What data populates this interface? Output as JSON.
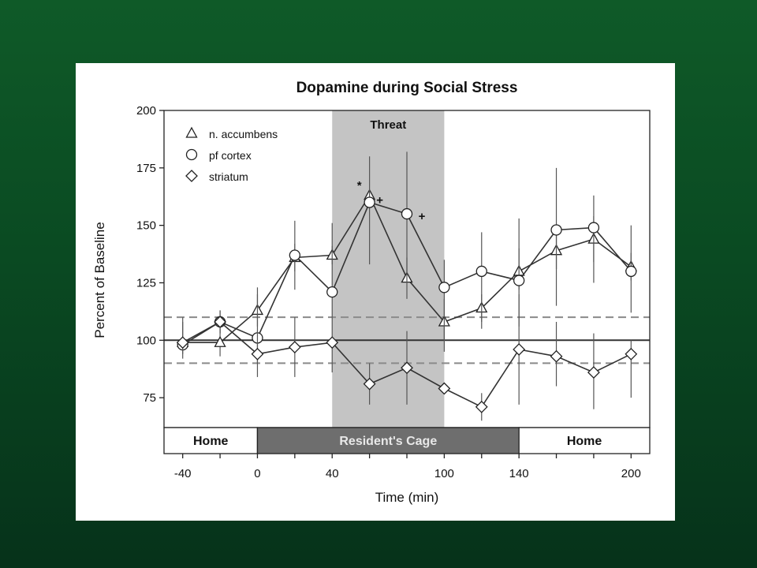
{
  "chart_data": {
    "type": "line",
    "title": "Dopamine during Social Stress",
    "xlabel": "Time (min)",
    "ylabel": "Percent of Baseline",
    "xlim": [
      -50,
      210
    ],
    "ylim": [
      62,
      200
    ],
    "x_ticks": [
      -40,
      -20,
      0,
      20,
      40,
      60,
      80,
      100,
      120,
      140,
      160,
      180,
      200
    ],
    "x_tick_labels": [
      {
        "x": -40,
        "label": "-40"
      },
      {
        "x": 0,
        "label": "0"
      },
      {
        "x": 40,
        "label": "40"
      },
      {
        "x": 100,
        "label": "100"
      },
      {
        "x": 140,
        "label": "140"
      },
      {
        "x": 200,
        "label": "200"
      }
    ],
    "y_ticks": [
      75,
      100,
      125,
      150,
      175,
      200
    ],
    "shaded_region": {
      "x": [
        40,
        100
      ],
      "label": "Threat",
      "color": "#c4c4c4"
    },
    "reference_lines": [
      {
        "y": 100,
        "style": "solid"
      },
      {
        "y": 110,
        "style": "dashed"
      },
      {
        "y": 90,
        "style": "dashed"
      }
    ],
    "series": [
      {
        "name": "n. accumbens",
        "marker": "triangle",
        "points": [
          {
            "x": -40,
            "y": 99,
            "lo": 99,
            "hi": 99
          },
          {
            "x": -20,
            "y": 99,
            "lo": 93,
            "hi": 105
          },
          {
            "x": 0,
            "y": 113,
            "lo": 106,
            "hi": 120
          },
          {
            "x": 20,
            "y": 136,
            "lo": 130,
            "hi": 142
          },
          {
            "x": 40,
            "y": 137,
            "lo": 133,
            "hi": 141
          },
          {
            "x": 60,
            "y": 163,
            "lo": 163,
            "hi": 163
          },
          {
            "x": 80,
            "y": 127,
            "lo": 118,
            "hi": 136
          },
          {
            "x": 100,
            "y": 108,
            "lo": 95,
            "hi": 118
          },
          {
            "x": 120,
            "y": 114,
            "lo": 108,
            "hi": 120
          },
          {
            "x": 140,
            "y": 130,
            "lo": 122,
            "hi": 153
          },
          {
            "x": 160,
            "y": 139,
            "lo": 131,
            "hi": 147
          },
          {
            "x": 180,
            "y": 144,
            "lo": 134,
            "hi": 154
          },
          {
            "x": 200,
            "y": 132,
            "lo": 126,
            "hi": 138
          }
        ]
      },
      {
        "name": "pf cortex",
        "marker": "circle",
        "points": [
          {
            "x": -40,
            "y": 98,
            "lo": 94,
            "hi": 108
          },
          {
            "x": -20,
            "y": 108,
            "lo": 103,
            "hi": 113
          },
          {
            "x": 0,
            "y": 101,
            "lo": 90,
            "hi": 123
          },
          {
            "x": 20,
            "y": 137,
            "lo": 122,
            "hi": 152
          },
          {
            "x": 40,
            "y": 121,
            "lo": 110,
            "hi": 151
          },
          {
            "x": 60,
            "y": 160,
            "lo": 133,
            "hi": 180
          },
          {
            "x": 80,
            "y": 155,
            "lo": 125,
            "hi": 182
          },
          {
            "x": 100,
            "y": 123,
            "lo": 100,
            "hi": 135
          },
          {
            "x": 120,
            "y": 130,
            "lo": 105,
            "hi": 147
          },
          {
            "x": 140,
            "y": 126,
            "lo": 106,
            "hi": 140
          },
          {
            "x": 160,
            "y": 148,
            "lo": 115,
            "hi": 175
          },
          {
            "x": 180,
            "y": 149,
            "lo": 125,
            "hi": 163
          },
          {
            "x": 200,
            "y": 130,
            "lo": 112,
            "hi": 150
          }
        ]
      },
      {
        "name": "striatum",
        "marker": "diamond",
        "points": [
          {
            "x": -40,
            "y": 99,
            "lo": 92,
            "hi": 110
          },
          {
            "x": -20,
            "y": 108,
            "lo": 103,
            "hi": 113
          },
          {
            "x": 0,
            "y": 94,
            "lo": 84,
            "hi": 104
          },
          {
            "x": 20,
            "y": 97,
            "lo": 84,
            "hi": 110
          },
          {
            "x": 40,
            "y": 99,
            "lo": 86,
            "hi": 110
          },
          {
            "x": 60,
            "y": 81,
            "lo": 72,
            "hi": 90
          },
          {
            "x": 80,
            "y": 88,
            "lo": 72,
            "hi": 104
          },
          {
            "x": 100,
            "y": 79,
            "lo": 79,
            "hi": 79
          },
          {
            "x": 120,
            "y": 71,
            "lo": 65,
            "hi": 77
          },
          {
            "x": 140,
            "y": 96,
            "lo": 72,
            "hi": 120
          },
          {
            "x": 160,
            "y": 93,
            "lo": 80,
            "hi": 108
          },
          {
            "x": 180,
            "y": 86,
            "lo": 70,
            "hi": 103
          },
          {
            "x": 200,
            "y": 94,
            "lo": 75,
            "hi": 100
          }
        ]
      }
    ],
    "significance_markers": [
      {
        "x": 60,
        "y": 163,
        "symbol": "*"
      },
      {
        "x": 60,
        "y": 160,
        "symbol": "+"
      },
      {
        "x": 80,
        "y": 155,
        "symbol": "+"
      }
    ],
    "location_bar": [
      {
        "start": -50,
        "end": 0,
        "label": "Home",
        "fill": "#ffffff"
      },
      {
        "start": 0,
        "end": 140,
        "label": "Resident's Cage",
        "fill": "#6e6e6e"
      },
      {
        "start": 140,
        "end": 210,
        "label": "Home",
        "fill": "#ffffff"
      }
    ]
  }
}
